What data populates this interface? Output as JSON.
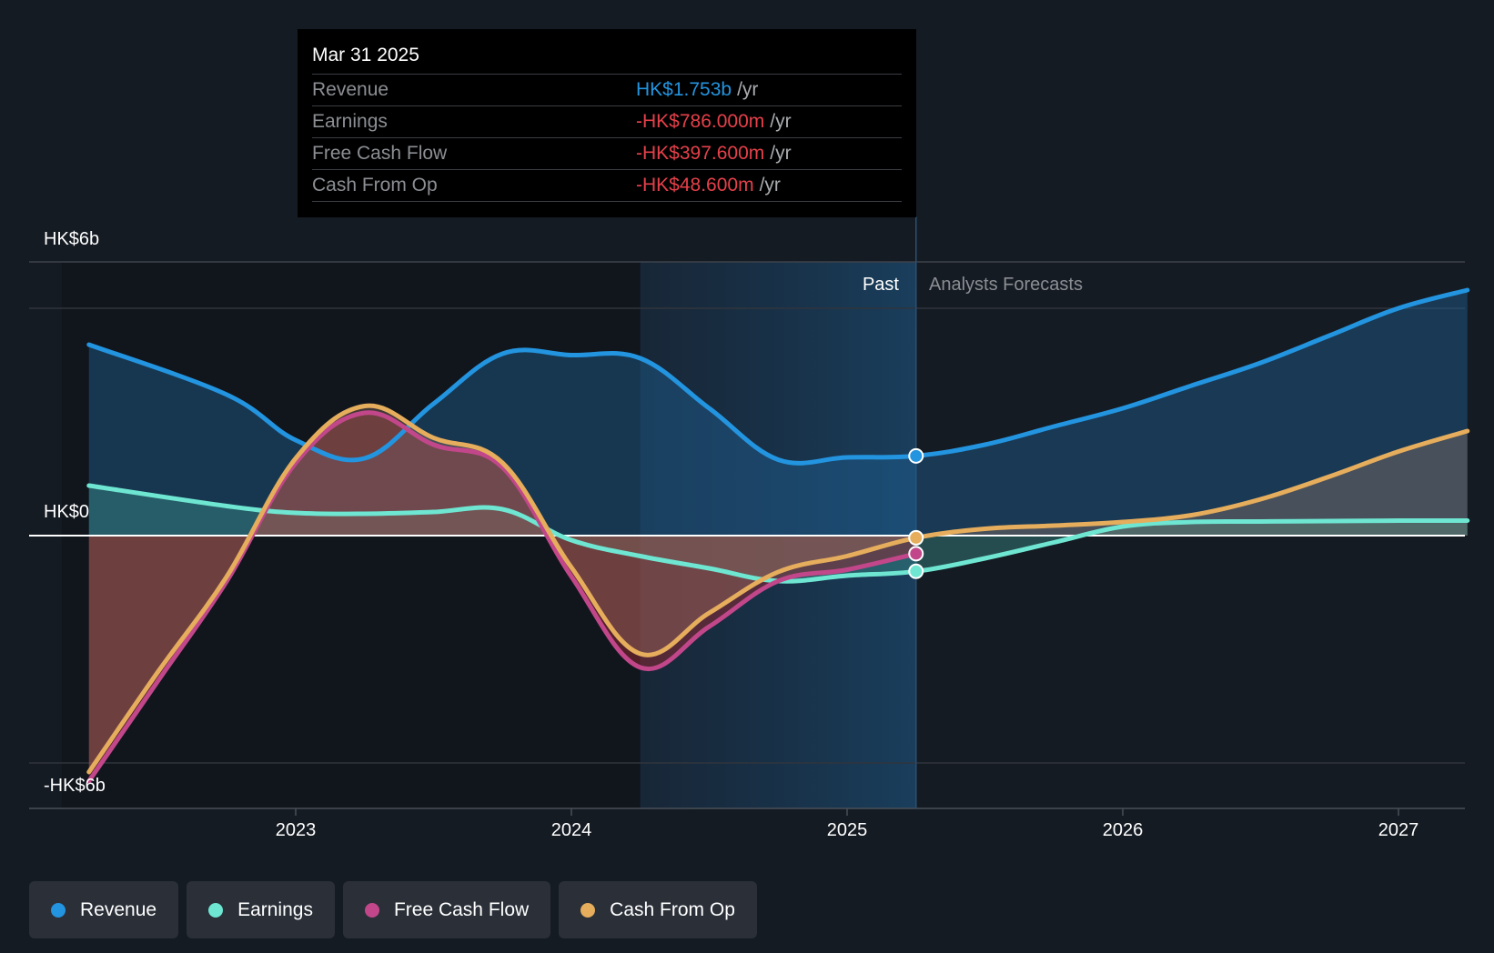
{
  "tooltip": {
    "date": "Mar 31 2025",
    "rows": [
      {
        "label": "Revenue",
        "value": "HK$1.753b",
        "unit": "/yr"
      },
      {
        "label": "Earnings",
        "value": "-HK$786.000m",
        "unit": "/yr"
      },
      {
        "label": "Free Cash Flow",
        "value": "-HK$397.600m",
        "unit": "/yr"
      },
      {
        "label": "Cash From Op",
        "value": "-HK$48.600m",
        "unit": "/yr"
      }
    ]
  },
  "labels": {
    "past": "Past",
    "forecasts": "Analysts Forecasts"
  },
  "legend": [
    {
      "label": "Revenue",
      "color": "#2394df"
    },
    {
      "label": "Earnings",
      "color": "#6ee6d1"
    },
    {
      "label": "Free Cash Flow",
      "color": "#c2478a"
    },
    {
      "label": "Cash From Op",
      "color": "#e5ad5c"
    }
  ],
  "chart_data": {
    "type": "line",
    "title": "",
    "xlabel": "",
    "ylabel": "",
    "y_tick_labels": [
      "HK$6b",
      "HK$0",
      "-HK$6b"
    ],
    "y_ticks": [
      6,
      0,
      -6
    ],
    "ylim": [
      -6,
      6
    ],
    "x_tick_labels": [
      "2023",
      "2024",
      "2025",
      "2026",
      "2027"
    ],
    "x_ticks": [
      2023,
      2024,
      2025,
      2026,
      2027
    ],
    "xlim": [
      2022.25,
      2027.25
    ],
    "units": "HK$ billions per year",
    "past_region": [
      2024.25,
      2025.25
    ],
    "forecast_start": 2025.25,
    "highlight_x": 2025.25,
    "grid": true,
    "legend_position": "bottom-left",
    "series": [
      {
        "name": "Revenue",
        "color": "#2394df",
        "x": [
          2022.25,
          2022.75,
          2023.0,
          2023.25,
          2023.5,
          2023.75,
          2024.0,
          2024.25,
          2024.5,
          2024.75,
          2025.0,
          2025.25,
          2025.5,
          2025.75,
          2026.0,
          2026.25,
          2026.5,
          2026.75,
          2027.0,
          2027.25
        ],
        "y": [
          4.2,
          3.1,
          2.1,
          1.7,
          2.9,
          4.0,
          3.97,
          3.9,
          2.8,
          1.67,
          1.72,
          1.753,
          2.0,
          2.4,
          2.8,
          3.3,
          3.8,
          4.4,
          5.0,
          5.4
        ]
      },
      {
        "name": "Earnings",
        "color": "#6ee6d1",
        "x": [
          2022.25,
          2022.75,
          2023.0,
          2023.25,
          2023.5,
          2023.75,
          2024.0,
          2024.25,
          2024.5,
          2024.75,
          2025.0,
          2025.25,
          2025.5,
          2025.75,
          2026.0,
          2026.25,
          2026.5,
          2026.75,
          2027.0,
          2027.25
        ],
        "y": [
          1.1,
          0.65,
          0.5,
          0.48,
          0.52,
          0.58,
          -0.1,
          -0.45,
          -0.72,
          -1.0,
          -0.88,
          -0.786,
          -0.5,
          -0.15,
          0.2,
          0.3,
          0.31,
          0.32,
          0.33,
          0.33
        ]
      },
      {
        "name": "Free Cash Flow",
        "color": "#c2478a",
        "x": [
          2022.25,
          2022.5,
          2022.75,
          2023.0,
          2023.25,
          2023.5,
          2023.75,
          2024.0,
          2024.25,
          2024.5,
          2024.75,
          2025.0,
          2025.25
        ],
        "y": [
          -5.4,
          -3.2,
          -1.0,
          1.6,
          2.7,
          2.0,
          1.5,
          -0.9,
          -2.9,
          -2.0,
          -1.0,
          -0.75,
          -0.3976
        ]
      },
      {
        "name": "Cash From Op",
        "color": "#e5ad5c",
        "x": [
          2022.25,
          2022.5,
          2022.75,
          2023.0,
          2023.25,
          2023.5,
          2023.75,
          2024.0,
          2024.25,
          2024.5,
          2024.75,
          2025.0,
          2025.25,
          2025.5,
          2025.75,
          2026.0,
          2026.25,
          2026.5,
          2026.75,
          2027.0,
          2027.25
        ],
        "y": [
          -5.2,
          -3.0,
          -0.9,
          1.7,
          2.85,
          2.15,
          1.6,
          -0.7,
          -2.6,
          -1.7,
          -0.8,
          -0.45,
          -0.0486,
          0.15,
          0.22,
          0.3,
          0.45,
          0.8,
          1.3,
          1.85,
          2.3
        ]
      }
    ],
    "highlight_points": [
      {
        "series": "Revenue",
        "x": 2025.25,
        "y": 1.753
      },
      {
        "series": "Earnings",
        "x": 2025.25,
        "y": -0.786
      },
      {
        "series": "Free Cash Flow",
        "x": 2025.25,
        "y": -0.3976
      },
      {
        "series": "Cash From Op",
        "x": 2025.25,
        "y": -0.0486
      }
    ]
  }
}
